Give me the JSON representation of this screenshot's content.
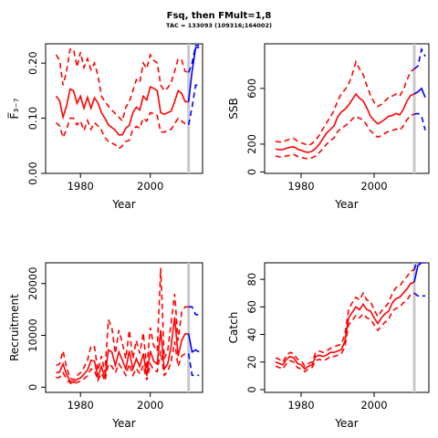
{
  "figure": {
    "title": "Fsq, then FMult=1,8",
    "subtitle": "TAC = 133093 (109316;164002)"
  },
  "colors": {
    "historic": "#ff0000",
    "forecast": "#0000ff",
    "divider": "#c8c8c8",
    "axis": "#000000"
  },
  "chart_data": [
    {
      "type": "line",
      "title": "",
      "xlabel": "Year",
      "ylabel": "F̅₃₋₇",
      "xlim": [
        1970,
        2015
      ],
      "ylim": [
        0,
        0.235
      ],
      "xticks": [
        1980,
        2000
      ],
      "yticks": [
        0.0,
        0.1,
        0.2
      ],
      "ytick_labels": [
        "0.00",
        "0.10",
        "0.20"
      ],
      "divider_x": 2011,
      "historic_x": [
        1973,
        1974,
        1975,
        1976,
        1977,
        1978,
        1979,
        1980,
        1981,
        1982,
        1983,
        1984,
        1985,
        1986,
        1987,
        1988,
        1989,
        1990,
        1991,
        1992,
        1993,
        1994,
        1995,
        1996,
        1997,
        1998,
        1999,
        2000,
        2001,
        2002,
        2003,
        2004,
        2005,
        2006,
        2007,
        2008,
        2009,
        2010,
        2011
      ],
      "historic_mid": [
        0.14,
        0.132,
        0.102,
        0.122,
        0.153,
        0.15,
        0.127,
        0.14,
        0.118,
        0.138,
        0.118,
        0.137,
        0.128,
        0.11,
        0.1,
        0.088,
        0.083,
        0.078,
        0.07,
        0.07,
        0.082,
        0.087,
        0.11,
        0.12,
        0.115,
        0.14,
        0.133,
        0.157,
        0.154,
        0.15,
        0.11,
        0.107,
        0.11,
        0.113,
        0.13,
        0.15,
        0.145,
        0.13,
        0.13
      ],
      "historic_upper": [
        0.215,
        0.205,
        0.16,
        0.185,
        0.225,
        0.225,
        0.193,
        0.22,
        0.192,
        0.208,
        0.188,
        0.2,
        0.178,
        0.14,
        0.13,
        0.122,
        0.115,
        0.108,
        0.102,
        0.095,
        0.12,
        0.13,
        0.15,
        0.17,
        0.165,
        0.2,
        0.19,
        0.215,
        0.205,
        0.2,
        0.16,
        0.15,
        0.155,
        0.165,
        0.185,
        0.208,
        0.205,
        0.185,
        0.183
      ],
      "historic_lower": [
        0.092,
        0.086,
        0.065,
        0.08,
        0.1,
        0.1,
        0.088,
        0.095,
        0.078,
        0.096,
        0.08,
        0.092,
        0.086,
        0.078,
        0.065,
        0.058,
        0.055,
        0.052,
        0.045,
        0.05,
        0.058,
        0.06,
        0.08,
        0.085,
        0.082,
        0.1,
        0.095,
        0.11,
        0.108,
        0.105,
        0.075,
        0.075,
        0.078,
        0.08,
        0.09,
        0.1,
        0.095,
        0.09,
        0.088
      ],
      "forecast_x": [
        2011,
        2012,
        2013,
        2014
      ],
      "forecast_mid": [
        0.13,
        0.185,
        0.228,
        0.228
      ],
      "forecast_upper": [
        0.183,
        0.2,
        0.232,
        0.232
      ],
      "forecast_lower": [
        0.088,
        0.12,
        0.16,
        0.16
      ],
      "forecast_style": [
        "solid",
        "dashed",
        "dashed"
      ]
    },
    {
      "type": "line",
      "title": "",
      "xlabel": "Year",
      "ylabel": "SSB",
      "xlim": [
        1970,
        2015
      ],
      "ylim": [
        -10,
        920
      ],
      "xticks": [
        1980,
        2000
      ],
      "yticks": [
        0,
        200,
        600
      ],
      "ytick_labels": [
        "0",
        "200",
        "600"
      ],
      "divider_x": 2011,
      "historic_x": [
        1973,
        1974,
        1975,
        1976,
        1977,
        1978,
        1979,
        1980,
        1981,
        1982,
        1983,
        1984,
        1985,
        1986,
        1987,
        1988,
        1989,
        1990,
        1991,
        1992,
        1993,
        1994,
        1995,
        1996,
        1997,
        1998,
        1999,
        2000,
        2001,
        2002,
        2003,
        2004,
        2005,
        2006,
        2007,
        2008,
        2009,
        2010,
        2011
      ],
      "historic_mid": [
        165,
        160,
        160,
        170,
        178,
        180,
        165,
        155,
        145,
        140,
        150,
        170,
        200,
        240,
        280,
        305,
        330,
        395,
        430,
        450,
        480,
        520,
        560,
        530,
        510,
        460,
        400,
        370,
        345,
        360,
        380,
        400,
        405,
        420,
        410,
        450,
        510,
        550,
        560
      ],
      "historic_upper": [
        220,
        215,
        215,
        228,
        235,
        240,
        222,
        210,
        200,
        190,
        205,
        230,
        265,
        310,
        355,
        395,
        440,
        510,
        560,
        590,
        630,
        700,
        790,
        740,
        700,
        620,
        550,
        500,
        470,
        485,
        510,
        535,
        545,
        560,
        545,
        590,
        660,
        720,
        740
      ],
      "historic_lower": [
        115,
        108,
        108,
        115,
        120,
        125,
        112,
        105,
        98,
        95,
        102,
        115,
        140,
        170,
        200,
        225,
        245,
        290,
        315,
        330,
        350,
        380,
        400,
        385,
        375,
        335,
        295,
        270,
        250,
        262,
        278,
        292,
        298,
        308,
        300,
        330,
        375,
        405,
        415
      ],
      "forecast_x": [
        2011,
        2012,
        2013,
        2014
      ],
      "forecast_mid": [
        560,
        575,
        600,
        535
      ],
      "forecast_upper": [
        740,
        760,
        880,
        830
      ],
      "forecast_lower": [
        415,
        420,
        400,
        300
      ],
      "forecast_style": [
        "solid",
        "dashed",
        "dashed"
      ]
    },
    {
      "type": "line",
      "title": "",
      "xlabel": "Year",
      "ylabel": "Recruitment",
      "xlim": [
        1970,
        2015
      ],
      "ylim": [
        -1000,
        24000
      ],
      "xticks": [
        1980,
        2000
      ],
      "yticks": [
        0,
        10000,
        20000
      ],
      "ytick_labels": [
        "0",
        "10000",
        "20000"
      ],
      "divider_x": 2011,
      "historic_x": [
        1973,
        1974,
        1975,
        1976,
        1977,
        1978,
        1979,
        1980,
        1981,
        1982,
        1983,
        1984,
        1985,
        1986,
        1987,
        1988,
        1989,
        1990,
        1991,
        1992,
        1993,
        1994,
        1995,
        1996,
        1997,
        1998,
        1999,
        2000,
        2001,
        2002,
        2003,
        2004,
        2005,
        2006,
        2007,
        2008,
        2009,
        2010,
        2011
      ],
      "historic_mid": [
        2800,
        2900,
        4500,
        2500,
        1200,
        900,
        1500,
        1800,
        2500,
        3300,
        5200,
        5000,
        2000,
        4000,
        1800,
        7200,
        6800,
        4200,
        6800,
        5200,
        3500,
        7000,
        3500,
        5500,
        4000,
        6500,
        2200,
        7000,
        5000,
        4500,
        11000,
        3500,
        4500,
        8000,
        13500,
        6000,
        9000,
        10300,
        10300
      ],
      "historic_upper": [
        4200,
        4500,
        7000,
        3800,
        1800,
        1400,
        2200,
        2800,
        3800,
        5200,
        8000,
        7800,
        3200,
        6000,
        2800,
        13000,
        11500,
        6500,
        11000,
        8500,
        5500,
        11000,
        5500,
        9000,
        6500,
        10500,
        3500,
        11500,
        8000,
        7000,
        23000,
        5500,
        7000,
        12500,
        18000,
        9000,
        14500,
        15500,
        15500
      ],
      "historic_lower": [
        1800,
        1900,
        2800,
        1600,
        800,
        600,
        900,
        1200,
        1600,
        2200,
        3500,
        3300,
        1300,
        2700,
        1200,
        4500,
        4000,
        2800,
        4500,
        3400,
        2300,
        4500,
        2300,
        3600,
        2600,
        4200,
        1400,
        4500,
        3300,
        3000,
        7000,
        2300,
        3000,
        5000,
        8800,
        4000,
        6000,
        6500,
        6500
      ],
      "forecast_x": [
        2011,
        2012,
        2013,
        2014
      ],
      "forecast_mid": [
        10300,
        6800,
        7200,
        6800
      ],
      "forecast_upper": [
        15500,
        15500,
        14000,
        14000
      ],
      "forecast_lower": [
        6500,
        2300,
        2300,
        2300
      ],
      "forecast_style": [
        "solid",
        "dashed",
        "dashed"
      ]
    },
    {
      "type": "line",
      "title": "",
      "xlabel": "Year",
      "ylabel": "Catch",
      "xlim": [
        1970,
        2015
      ],
      "ylim": [
        -2,
        92
      ],
      "xticks": [
        1980,
        2000
      ],
      "yticks": [
        0,
        20,
        40,
        60,
        80
      ],
      "ytick_labels": [
        "0",
        "20",
        "40",
        "60",
        "80"
      ],
      "divider_x": 2011,
      "historic_x": [
        1973,
        1974,
        1975,
        1976,
        1977,
        1978,
        1979,
        1980,
        1981,
        1982,
        1983,
        1984,
        1985,
        1986,
        1987,
        1988,
        1989,
        1990,
        1991,
        1992,
        1993,
        1994,
        1995,
        1996,
        1997,
        1998,
        1999,
        2000,
        2001,
        2002,
        2003,
        2004,
        2005,
        2006,
        2007,
        2008,
        2009,
        2010,
        2011
      ],
      "historic_mid": [
        20,
        19,
        18,
        22,
        24,
        23,
        19,
        18,
        15,
        17,
        18,
        24,
        25,
        24,
        25,
        27,
        27,
        28,
        29,
        35,
        52,
        56,
        60,
        58,
        62,
        58,
        57,
        52,
        48,
        52,
        55,
        57,
        63,
        66,
        67,
        70,
        73,
        77,
        78
      ],
      "historic_upper": [
        23,
        22,
        20,
        25,
        27,
        26,
        22,
        21,
        17,
        19,
        20,
        27,
        28,
        27,
        28,
        30,
        31,
        32,
        33,
        40,
        58,
        63,
        67,
        65,
        70,
        65,
        64,
        58,
        53,
        57,
        60,
        63,
        70,
        74,
        75,
        79,
        82,
        86,
        87
      ],
      "historic_lower": [
        17,
        16,
        15,
        19,
        21,
        20,
        16,
        15,
        13,
        15,
        16,
        21,
        22,
        21,
        22,
        24,
        24,
        25,
        26,
        31,
        47,
        50,
        54,
        52,
        55,
        52,
        51,
        47,
        43,
        46,
        49,
        51,
        57,
        59,
        60,
        63,
        65,
        69,
        70
      ],
      "forecast_x": [
        2011,
        2012,
        2013,
        2014
      ],
      "forecast_mid": [
        78,
        90,
        92,
        92
      ],
      "forecast_upper": [
        87,
        95,
        95,
        95
      ],
      "forecast_lower": [
        70,
        68,
        68,
        68
      ],
      "forecast_style": [
        "solid",
        "dashed",
        "dashed"
      ]
    }
  ]
}
